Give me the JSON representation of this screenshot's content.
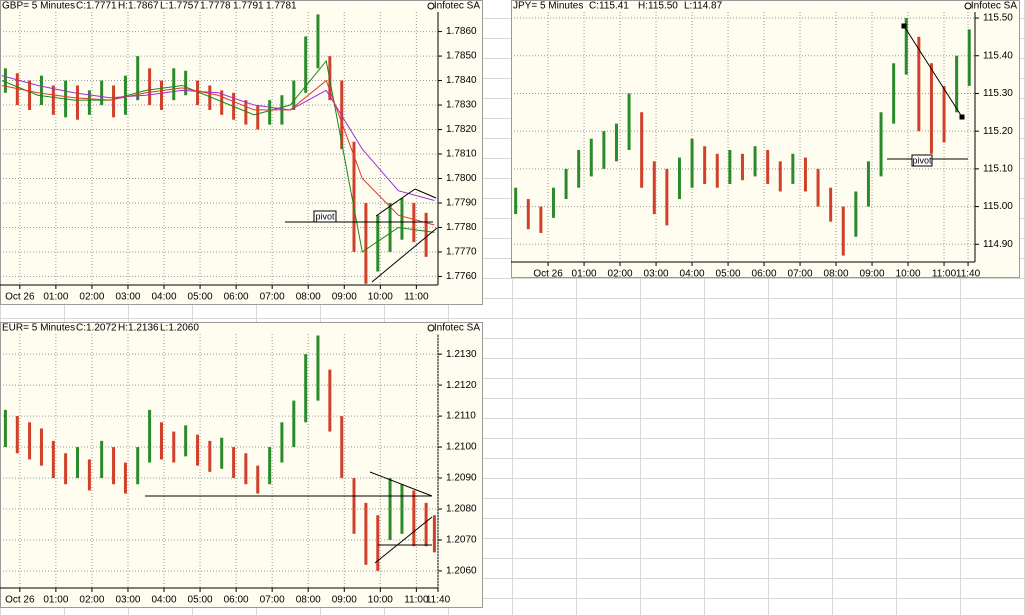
{
  "chart_data": [
    {
      "type": "range-bar",
      "header": {
        "symbol": "GBP= 5 Minutes",
        "close": "C:1.7771",
        "high": "H:1.7867",
        "low": "L:1.7757"
      },
      "source": "Infotec SA",
      "annotation": "pivot",
      "xlim": [
        -0.55,
        11.6
      ],
      "ylim": [
        1.77565,
        1.7868
      ],
      "xticks": [
        {
          "value": 0,
          "label": "Oct 26"
        },
        {
          "value": 1,
          "label": "01:00"
        },
        {
          "value": 2,
          "label": "02:00"
        },
        {
          "value": 3,
          "label": "03:00"
        },
        {
          "value": 4,
          "label": "04:00"
        },
        {
          "value": 5,
          "label": "05:00"
        },
        {
          "value": 6,
          "label": "06:00"
        },
        {
          "value": 7,
          "label": "07:00"
        },
        {
          "value": 8,
          "label": "08:00"
        },
        {
          "value": 9,
          "label": "09:00"
        },
        {
          "value": 10,
          "label": "10:00"
        },
        {
          "value": 11,
          "label": "11:00"
        }
      ],
      "yticks": [
        {
          "value": 1.776,
          "label": "1.7760"
        },
        {
          "value": 1.777,
          "label": "1.7770"
        },
        {
          "value": 1.778,
          "label": "1.7780"
        },
        {
          "value": 1.779,
          "label": "1.7790"
        },
        {
          "value": 1.78,
          "label": "1.7800"
        },
        {
          "value": 1.781,
          "label": "1.7810"
        },
        {
          "value": 1.782,
          "label": "1.7820"
        },
        {
          "value": 1.783,
          "label": "1.7830"
        },
        {
          "value": 1.784,
          "label": "1.7840"
        },
        {
          "value": 1.785,
          "label": "1.7850"
        },
        {
          "value": 1.786,
          "label": "1.7860"
        }
      ],
      "x": [
        -0.4,
        -0.07,
        0.27,
        0.6,
        0.93,
        1.27,
        1.6,
        1.93,
        2.27,
        2.6,
        2.93,
        3.27,
        3.6,
        3.93,
        4.27,
        4.6,
        4.93,
        5.27,
        5.6,
        5.93,
        6.27,
        6.6,
        6.93,
        7.27,
        7.6,
        7.93,
        8.27,
        8.6,
        8.93,
        9.27,
        9.6,
        9.93,
        10.27,
        10.6,
        10.93,
        11.27
      ],
      "high": [
        1.7845,
        1.7843,
        1.784,
        1.7842,
        1.7838,
        1.784,
        1.7838,
        1.7836,
        1.784,
        1.7838,
        1.7842,
        1.785,
        1.7845,
        1.784,
        1.7845,
        1.7844,
        1.784,
        1.7838,
        1.7836,
        1.7835,
        1.7832,
        1.783,
        1.7832,
        1.7834,
        1.784,
        1.7858,
        1.7867,
        1.785,
        1.784,
        1.7815,
        1.779,
        1.7785,
        1.779,
        1.7792,
        1.779,
        1.7786
      ],
      "low": [
        1.7835,
        1.783,
        1.7828,
        1.783,
        1.7826,
        1.7825,
        1.7824,
        1.7826,
        1.783,
        1.7825,
        1.7826,
        1.7832,
        1.783,
        1.7828,
        1.7832,
        1.7834,
        1.783,
        1.7828,
        1.7826,
        1.7824,
        1.7822,
        1.782,
        1.7822,
        1.7822,
        1.7828,
        1.7835,
        1.7845,
        1.7832,
        1.7812,
        1.777,
        1.7757,
        1.7762,
        1.777,
        1.7775,
        1.7774,
        1.7768
      ],
      "ma_x": [
        -0.5,
        0.5,
        1.5,
        2.5,
        3.5,
        4.5,
        5.5,
        6.5,
        7.5,
        8.5,
        9.5,
        10.5,
        11.5
      ],
      "moving_averages": [
        {
          "label": "1.7778",
          "color": "#138a13",
          "values": [
            1.784,
            1.7834,
            1.7832,
            1.7832,
            1.7836,
            1.7838,
            1.7832,
            1.7826,
            1.783,
            1.7848,
            1.777,
            1.778,
            1.7778
          ]
        },
        {
          "label": "1.7791",
          "color": "#9b30d9",
          "values": [
            1.7842,
            1.7838,
            1.7835,
            1.7833,
            1.7834,
            1.7836,
            1.7835,
            1.783,
            1.7828,
            1.7836,
            1.7812,
            1.7795,
            1.7791
          ]
        },
        {
          "label": "1.7781",
          "color": "#d83a2a",
          "values": [
            1.7838,
            1.7835,
            1.7833,
            1.7832,
            1.7835,
            1.7837,
            1.7834,
            1.7828,
            1.7828,
            1.784,
            1.78,
            1.7785,
            1.7781
          ]
        }
      ]
    },
    {
      "type": "range-bar",
      "header": {
        "symbol": "JPY= 5 Minutes",
        "close": "C:115.41",
        "high": "H:115.50",
        "low": "L:114.87"
      },
      "source": "Infotec SA",
      "annotation": "pivot",
      "xlim": [
        -1.03,
        11.86
      ],
      "ylim": [
        114.853,
        115.516
      ],
      "xticks": [
        {
          "value": 0,
          "label": "Oct 26"
        },
        {
          "value": 1,
          "label": "01:00"
        },
        {
          "value": 2,
          "label": "02:00"
        },
        {
          "value": 3,
          "label": "03:00"
        },
        {
          "value": 4,
          "label": "04:00"
        },
        {
          "value": 5,
          "label": "05:00"
        },
        {
          "value": 6,
          "label": "06:00"
        },
        {
          "value": 7,
          "label": "07:00"
        },
        {
          "value": 8,
          "label": "08:00"
        },
        {
          "value": 9,
          "label": "09:00"
        },
        {
          "value": 10,
          "label": "10:00"
        },
        {
          "value": 11,
          "label": "11:00"
        },
        {
          "value": 11.667,
          "label": "11:40"
        }
      ],
      "yticks": [
        {
          "value": 114.9,
          "label": "114.90"
        },
        {
          "value": 115.0,
          "label": "115.00"
        },
        {
          "value": 115.1,
          "label": "115.10"
        },
        {
          "value": 115.2,
          "label": "115.20"
        },
        {
          "value": 115.3,
          "label": "115.30"
        },
        {
          "value": 115.4,
          "label": "115.40"
        },
        {
          "value": 115.5,
          "label": "115.50"
        }
      ],
      "x": [
        -0.9,
        -0.55,
        -0.2,
        0.15,
        0.5,
        0.85,
        1.2,
        1.55,
        1.9,
        2.25,
        2.6,
        2.95,
        3.3,
        3.65,
        4.0,
        4.35,
        4.7,
        5.05,
        5.4,
        5.75,
        6.1,
        6.45,
        6.8,
        7.15,
        7.5,
        7.85,
        8.2,
        8.55,
        8.9,
        9.25,
        9.6,
        9.95,
        10.3,
        10.65,
        11.0,
        11.35,
        11.7
      ],
      "high": [
        115.05,
        115.02,
        115.0,
        115.05,
        115.1,
        115.15,
        115.18,
        115.2,
        115.22,
        115.3,
        115.25,
        115.12,
        115.1,
        115.13,
        115.18,
        115.16,
        115.14,
        115.15,
        115.14,
        115.16,
        115.15,
        115.12,
        115.14,
        115.13,
        115.1,
        115.05,
        115.0,
        115.04,
        115.12,
        115.25,
        115.38,
        115.5,
        115.45,
        115.38,
        115.32,
        115.4,
        115.47
      ],
      "low": [
        114.98,
        114.94,
        114.93,
        114.97,
        115.02,
        115.05,
        115.08,
        115.1,
        115.12,
        115.15,
        115.05,
        114.98,
        114.95,
        115.02,
        115.05,
        115.06,
        115.05,
        115.06,
        115.07,
        115.08,
        115.06,
        115.04,
        115.06,
        115.04,
        115.0,
        114.96,
        114.87,
        114.92,
        115.0,
        115.08,
        115.22,
        115.35,
        115.2,
        115.14,
        115.17,
        115.25,
        115.32
      ]
    },
    {
      "type": "range-bar",
      "header": {
        "symbol": "EUR= 5 Minutes",
        "close": "C:1.2072",
        "high": "H:1.2136",
        "low": "L:1.2060"
      },
      "source": "Infotec SA",
      "xlim": [
        -0.55,
        11.6
      ],
      "ylim": [
        1.20545,
        1.21365
      ],
      "xticks": [
        {
          "value": 0,
          "label": "Oct 26"
        },
        {
          "value": 1,
          "label": "01:00"
        },
        {
          "value": 2,
          "label": "02:00"
        },
        {
          "value": 3,
          "label": "03:00"
        },
        {
          "value": 4,
          "label": "04:00"
        },
        {
          "value": 5,
          "label": "05:00"
        },
        {
          "value": 6,
          "label": "06:00"
        },
        {
          "value": 7,
          "label": "07:00"
        },
        {
          "value": 8,
          "label": "08:00"
        },
        {
          "value": 9,
          "label": "09:00"
        },
        {
          "value": 10,
          "label": "10:00"
        },
        {
          "value": 11,
          "label": "11:00"
        },
        {
          "value": 11.6,
          "label": "11:40"
        }
      ],
      "yticks": [
        {
          "value": 1.206,
          "label": "1.2060"
        },
        {
          "value": 1.207,
          "label": "1.2070"
        },
        {
          "value": 1.208,
          "label": "1.2080"
        },
        {
          "value": 1.209,
          "label": "1.2090"
        },
        {
          "value": 1.21,
          "label": "1.2100"
        },
        {
          "value": 1.211,
          "label": "1.2110"
        },
        {
          "value": 1.212,
          "label": "1.2120"
        },
        {
          "value": 1.213,
          "label": "1.2130"
        }
      ],
      "x": [
        -0.4,
        -0.07,
        0.27,
        0.6,
        0.93,
        1.27,
        1.6,
        1.93,
        2.27,
        2.6,
        2.93,
        3.27,
        3.6,
        3.93,
        4.27,
        4.6,
        4.93,
        5.27,
        5.6,
        5.93,
        6.27,
        6.6,
        6.93,
        7.27,
        7.6,
        7.93,
        8.27,
        8.6,
        8.93,
        9.27,
        9.6,
        9.93,
        10.27,
        10.6,
        10.93,
        11.27,
        11.5
      ],
      "high": [
        1.2112,
        1.211,
        1.2108,
        1.2106,
        1.2102,
        1.2098,
        1.21,
        1.2096,
        1.2102,
        1.21,
        1.2095,
        1.21,
        1.2112,
        1.2108,
        1.2105,
        1.2107,
        1.2104,
        1.2102,
        1.2103,
        1.21,
        1.2098,
        1.2094,
        1.21,
        1.2108,
        1.2115,
        1.213,
        1.2136,
        1.2125,
        1.211,
        1.209,
        1.2082,
        1.2078,
        1.209,
        1.2088,
        1.2086,
        1.2082,
        1.2078
      ],
      "low": [
        1.21,
        1.2098,
        1.2096,
        1.2094,
        1.209,
        1.2088,
        1.209,
        1.2086,
        1.209,
        1.2088,
        1.2085,
        1.2088,
        1.2095,
        1.2096,
        1.2095,
        1.2097,
        1.2094,
        1.2092,
        1.2093,
        1.209,
        1.2088,
        1.2085,
        1.2088,
        1.2095,
        1.21,
        1.2108,
        1.2115,
        1.2105,
        1.209,
        1.2072,
        1.2062,
        1.206,
        1.207,
        1.2072,
        1.2068,
        1.2068,
        1.2066
      ]
    }
  ]
}
